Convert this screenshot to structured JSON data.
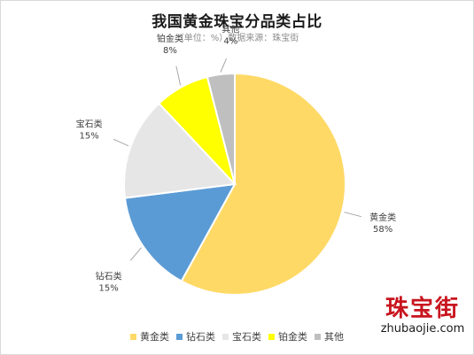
{
  "chart_data": {
    "type": "pie",
    "title": "我国黄金珠宝分品类占比",
    "subtitle": "（单位：%）数据来源：珠宝街",
    "categories": [
      "黄金类",
      "钻石类",
      "宝石类",
      "铂金类",
      "其他"
    ],
    "values": [
      58,
      15,
      15,
      8,
      4
    ],
    "value_labels": [
      "58%",
      "15%",
      "15%",
      "8%",
      "4%"
    ],
    "colors": [
      "#ffd966",
      "#5b9bd5",
      "#e7e6e6",
      "#ffff00",
      "#bfbfbf"
    ],
    "legend_position": "bottom",
    "start_angle": "12 o'clock, clockwise"
  },
  "watermark": {
    "brand_cn": "珠宝街",
    "brand_en": "zhubaojie.com"
  }
}
